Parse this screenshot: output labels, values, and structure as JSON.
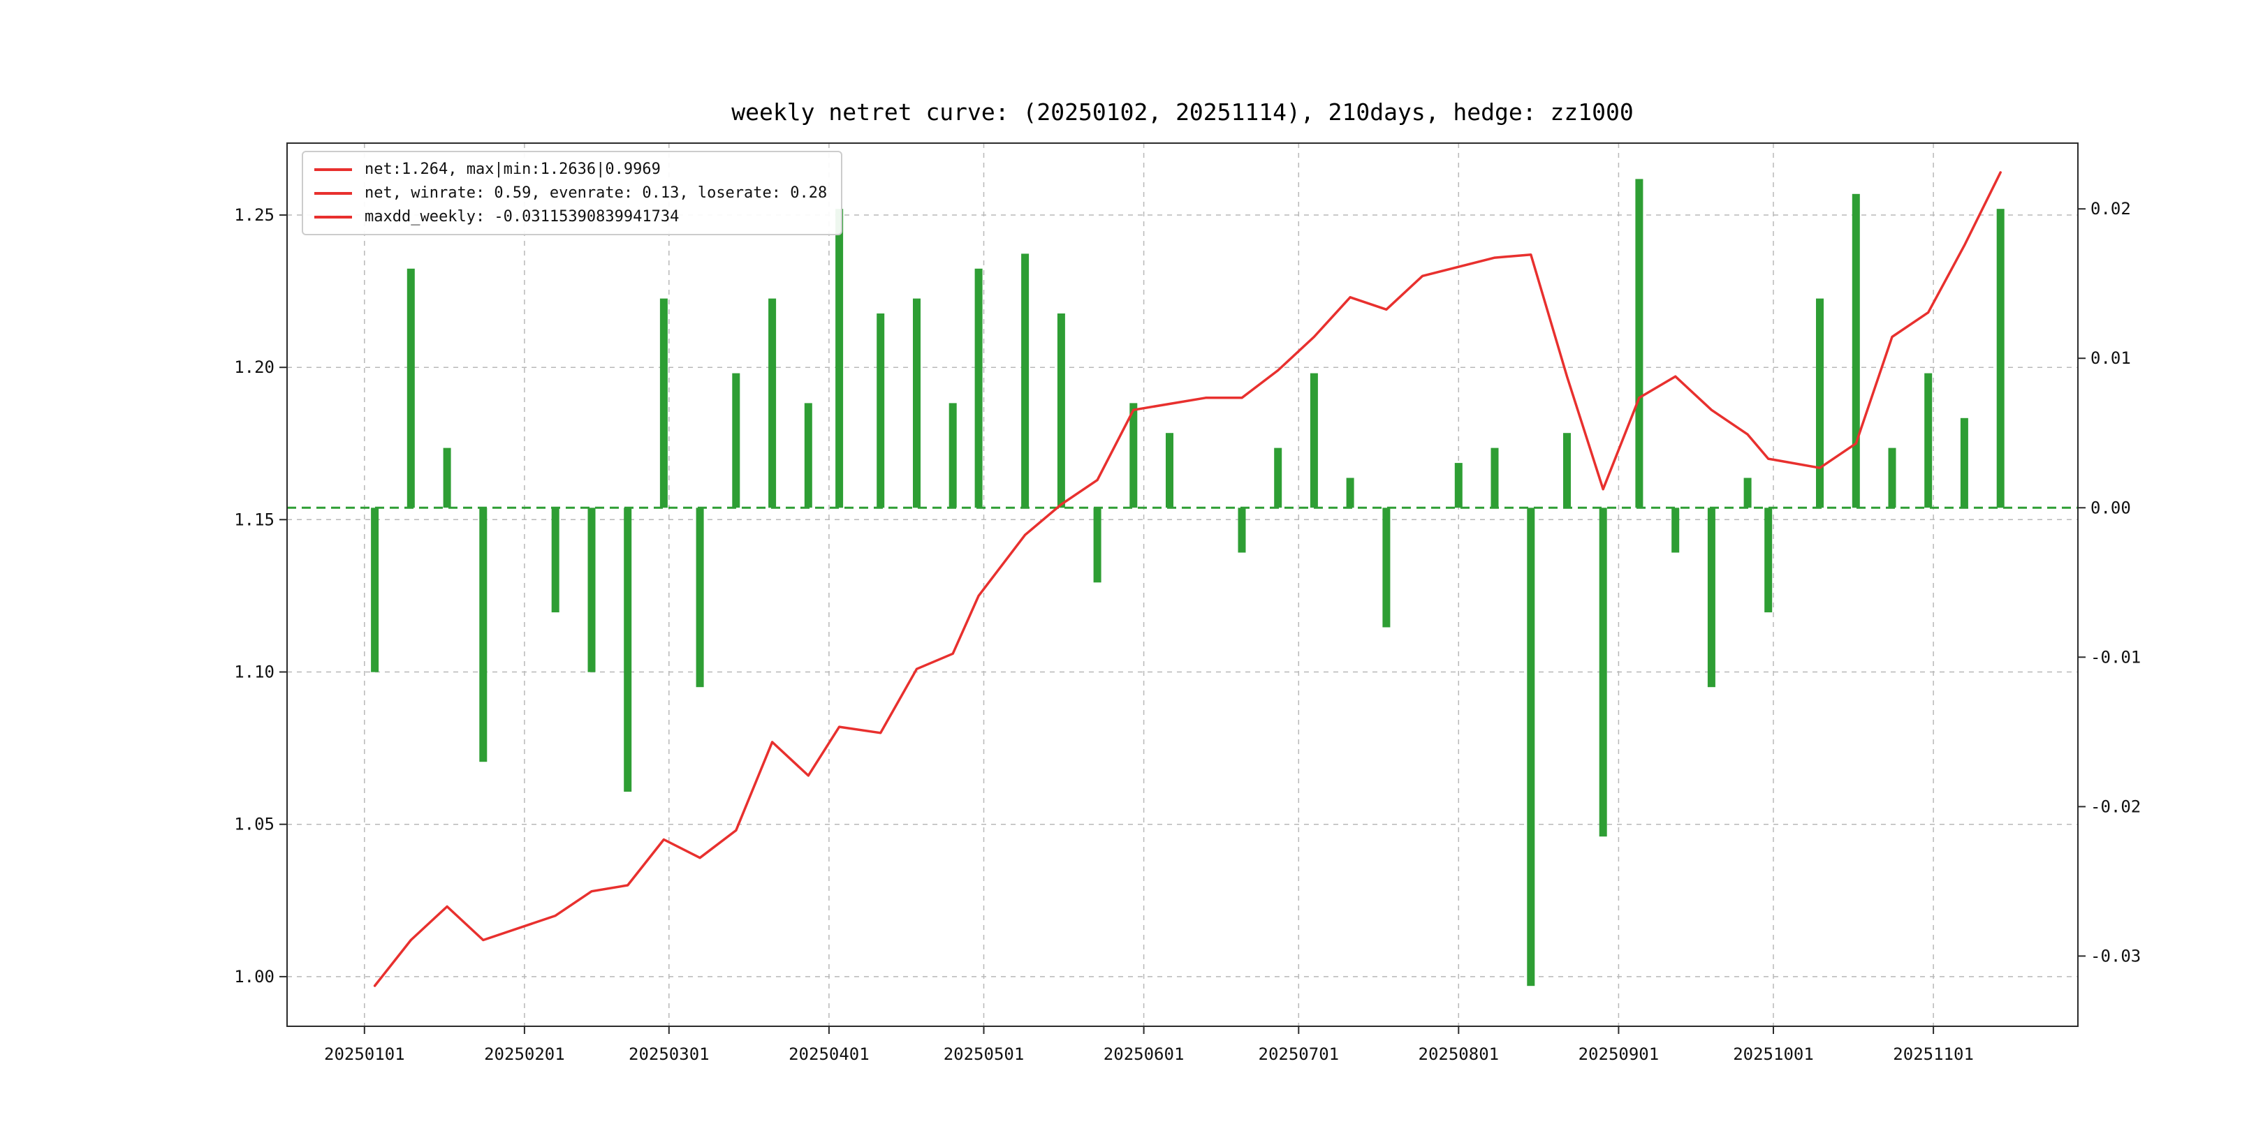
{
  "title": "weekly netret curve: (20250102, 20251114), 210days, hedge: zz1000",
  "legend": {
    "position": "upper left",
    "entries": [
      {
        "label": "net:1.264, max|min:1.2636|0.9969"
      },
      {
        "label": "net, winrate: 0.59, evenrate: 0.13, loserate: 0.28"
      },
      {
        "label": "maxdd_weekly: -0.03115390839941734"
      }
    ]
  },
  "stats": {
    "net": 1.264,
    "max": 1.2636,
    "min": 0.9969,
    "winrate": 0.59,
    "evenrate": 0.13,
    "loserate": 0.28,
    "maxdd_weekly": -0.03115390839941734
  },
  "colors": {
    "line_red": "#e8302e",
    "bar_green": "#2e9e34",
    "zero_line_green": "#2e9e34",
    "grid": "#b8b8b8",
    "spine": "#2b2b2b",
    "text": "#111111",
    "background": "#ffffff"
  },
  "chart_data": {
    "type": "bar+line",
    "title": "weekly netret curve: (20250102, 20251114), 210days, hedge: zz1000",
    "xlabel": "",
    "ylabel_left": "",
    "ylabel_right": "",
    "grid": true,
    "legend_position": "upper left",
    "x_dates": [
      "20250103",
      "20250110",
      "20250117",
      "20250124",
      "20250207",
      "20250214",
      "20250221",
      "20250228",
      "20250307",
      "20250314",
      "20250321",
      "20250328",
      "20250403",
      "20250411",
      "20250418",
      "20250425",
      "20250430",
      "20250509",
      "20250516",
      "20250523",
      "20250530",
      "20250606",
      "20250613",
      "20250620",
      "20250627",
      "20250704",
      "20250711",
      "20250718",
      "20250725",
      "20250801",
      "20250808",
      "20250815",
      "20250822",
      "20250829",
      "20250905",
      "20250912",
      "20250919",
      "20250926",
      "20250930",
      "20251010",
      "20251017",
      "20251024",
      "20251031",
      "20251107",
      "20251114"
    ],
    "x_day_offsets": [
      2,
      9,
      16,
      23,
      37,
      44,
      51,
      58,
      65,
      72,
      79,
      86,
      92,
      100,
      107,
      114,
      119,
      128,
      135,
      142,
      149,
      156,
      163,
      170,
      177,
      184,
      191,
      198,
      205,
      212,
      219,
      226,
      233,
      240,
      247,
      254,
      261,
      268,
      272,
      282,
      289,
      296,
      303,
      310,
      317
    ],
    "series": [
      {
        "name": "net value (left axis)",
        "type": "line",
        "color": "#e8302e",
        "values": [
          0.997,
          1.012,
          1.023,
          1.012,
          1.02,
          1.028,
          1.03,
          1.045,
          1.039,
          1.048,
          1.077,
          1.066,
          1.082,
          1.08,
          1.101,
          1.106,
          1.125,
          1.145,
          1.155,
          1.163,
          1.186,
          1.188,
          1.19,
          1.19,
          1.199,
          1.21,
          1.223,
          1.219,
          1.23,
          1.233,
          1.236,
          1.237,
          1.197,
          1.16,
          1.19,
          1.197,
          1.186,
          1.178,
          1.17,
          1.167,
          1.175,
          1.21,
          1.218,
          1.24,
          1.264
        ]
      },
      {
        "name": "weekly return (right axis)",
        "type": "bar",
        "color": "#2e9e34",
        "values": [
          -0.011,
          0.016,
          0.004,
          -0.017,
          -0.007,
          -0.011,
          -0.019,
          0.014,
          -0.012,
          0.009,
          0.014,
          0.007,
          0.02,
          0.013,
          0.014,
          0.007,
          0.016,
          0.017,
          0.013,
          -0.005,
          0.007,
          0.005,
          0.0,
          -0.003,
          0.004,
          0.009,
          0.002,
          -0.008,
          0.0,
          0.003,
          0.004,
          -0.032,
          0.005,
          -0.022,
          0.022,
          -0.003,
          -0.012,
          0.002,
          -0.007,
          0.014,
          0.021,
          0.004,
          0.009,
          0.006,
          0.02
        ]
      }
    ],
    "zero_line": {
      "value": 0.0,
      "color": "#2e9e34",
      "style": "dashed",
      "axis": "right"
    },
    "x_ticks": {
      "offsets": [
        0,
        31,
        59,
        90,
        120,
        151,
        181,
        212,
        243,
        273,
        304
      ],
      "labels": [
        "20250101",
        "20250201",
        "20250301",
        "20250401",
        "20250501",
        "20250601",
        "20250701",
        "20250801",
        "20250901",
        "20251001",
        "20251101"
      ]
    },
    "left_ticks": {
      "values": [
        1.0,
        1.05,
        1.1,
        1.15,
        1.2,
        1.25
      ],
      "labels": [
        "1.00",
        "1.05",
        "1.10",
        "1.15",
        "1.20",
        "1.25"
      ]
    },
    "right_ticks": {
      "values": [
        -0.03,
        -0.02,
        -0.01,
        0.0,
        0.01,
        0.02
      ],
      "labels": [
        "-0.03",
        "-0.02",
        "-0.01",
        "0.00",
        "0.01",
        "0.02"
      ]
    },
    "xlim_days": [
      -15,
      332
    ],
    "ylim_left": [
      0.9837,
      1.2736
    ],
    "ylim_right": [
      -0.0347,
      0.0244
    ]
  }
}
